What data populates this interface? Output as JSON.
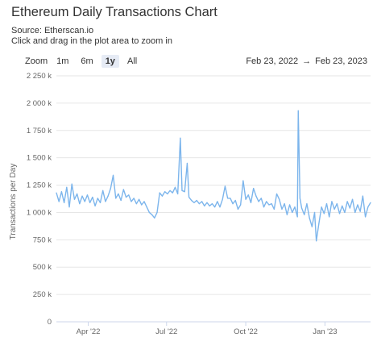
{
  "header": {
    "title": "Ethereum Daily Transactions Chart",
    "source": "Source: Etherscan.io",
    "hint": "Click and drag in the plot area to zoom in"
  },
  "zoom": {
    "label": "Zoom",
    "buttons": [
      "1m",
      "6m",
      "1y",
      "All"
    ],
    "active": "1y"
  },
  "range": {
    "from": "Feb 23, 2022",
    "arrow": "→",
    "to": "Feb 23, 2023"
  },
  "colors": {
    "line": "#7cb5ec",
    "grid": "#e6e6e6",
    "zoom_active_bg": "#e6ebf5"
  },
  "chart_data": {
    "type": "line",
    "title": "Ethereum Daily Transactions Chart",
    "xlabel": "",
    "ylabel": "Transactions per Day",
    "ylim": [
      0,
      2250000
    ],
    "y_ticks": [
      {
        "value": 0,
        "label": "0"
      },
      {
        "value": 250000,
        "label": "250 k"
      },
      {
        "value": 500000,
        "label": "500 k"
      },
      {
        "value": 750000,
        "label": "750 k"
      },
      {
        "value": 1000000,
        "label": "1 000 k"
      },
      {
        "value": 1250000,
        "label": "1 250 k"
      },
      {
        "value": 1500000,
        "label": "1 500 k"
      },
      {
        "value": 1750000,
        "label": "1 750 k"
      },
      {
        "value": 2000000,
        "label": "2 000 k"
      },
      {
        "value": 2250000,
        "label": "2 250 k"
      }
    ],
    "x_range": [
      "2022-02-23",
      "2023-02-23"
    ],
    "x_ticks": [
      {
        "date": "2022-04-01",
        "label": "Apr '22"
      },
      {
        "date": "2022-07-01",
        "label": "Jul '22"
      },
      {
        "date": "2022-10-01",
        "label": "Oct '22"
      },
      {
        "date": "2023-01-01",
        "label": "Jan '23"
      }
    ],
    "grid": true,
    "series": [
      {
        "points": [
          [
            "2022-02-23",
            1180000
          ],
          [
            "2022-02-26",
            1100000
          ],
          [
            "2022-03-01",
            1190000
          ],
          [
            "2022-03-04",
            1090000
          ],
          [
            "2022-03-07",
            1230000
          ],
          [
            "2022-03-10",
            1050000
          ],
          [
            "2022-03-13",
            1260000
          ],
          [
            "2022-03-16",
            1120000
          ],
          [
            "2022-03-19",
            1170000
          ],
          [
            "2022-03-22",
            1080000
          ],
          [
            "2022-03-25",
            1150000
          ],
          [
            "2022-03-28",
            1100000
          ],
          [
            "2022-03-31",
            1160000
          ],
          [
            "2022-04-03",
            1090000
          ],
          [
            "2022-04-06",
            1140000
          ],
          [
            "2022-04-09",
            1060000
          ],
          [
            "2022-04-12",
            1130000
          ],
          [
            "2022-04-15",
            1090000
          ],
          [
            "2022-04-18",
            1200000
          ],
          [
            "2022-04-21",
            1100000
          ],
          [
            "2022-04-24",
            1150000
          ],
          [
            "2022-04-27",
            1220000
          ],
          [
            "2022-04-30",
            1340000
          ],
          [
            "2022-05-03",
            1130000
          ],
          [
            "2022-05-06",
            1170000
          ],
          [
            "2022-05-09",
            1110000
          ],
          [
            "2022-05-12",
            1210000
          ],
          [
            "2022-05-15",
            1140000
          ],
          [
            "2022-05-18",
            1160000
          ],
          [
            "2022-05-21",
            1100000
          ],
          [
            "2022-05-24",
            1130000
          ],
          [
            "2022-05-27",
            1080000
          ],
          [
            "2022-05-30",
            1120000
          ],
          [
            "2022-06-02",
            1070000
          ],
          [
            "2022-06-05",
            1100000
          ],
          [
            "2022-06-08",
            1050000
          ],
          [
            "2022-06-11",
            1000000
          ],
          [
            "2022-06-14",
            980000
          ],
          [
            "2022-06-17",
            950000
          ],
          [
            "2022-06-20",
            1000000
          ],
          [
            "2022-06-23",
            1180000
          ],
          [
            "2022-06-26",
            1150000
          ],
          [
            "2022-06-29",
            1190000
          ],
          [
            "2022-07-02",
            1170000
          ],
          [
            "2022-07-05",
            1200000
          ],
          [
            "2022-07-08",
            1180000
          ],
          [
            "2022-07-11",
            1230000
          ],
          [
            "2022-07-14",
            1170000
          ],
          [
            "2022-07-17",
            1680000
          ],
          [
            "2022-07-19",
            1200000
          ],
          [
            "2022-07-22",
            1190000
          ],
          [
            "2022-07-25",
            1450000
          ],
          [
            "2022-07-27",
            1140000
          ],
          [
            "2022-07-30",
            1110000
          ],
          [
            "2022-08-02",
            1090000
          ],
          [
            "2022-08-05",
            1110000
          ],
          [
            "2022-08-08",
            1080000
          ],
          [
            "2022-08-11",
            1100000
          ],
          [
            "2022-08-14",
            1060000
          ],
          [
            "2022-08-17",
            1090000
          ],
          [
            "2022-08-20",
            1060000
          ],
          [
            "2022-08-23",
            1080000
          ],
          [
            "2022-08-26",
            1050000
          ],
          [
            "2022-08-29",
            1100000
          ],
          [
            "2022-09-01",
            1050000
          ],
          [
            "2022-09-04",
            1120000
          ],
          [
            "2022-09-07",
            1240000
          ],
          [
            "2022-09-10",
            1130000
          ],
          [
            "2022-09-13",
            1130000
          ],
          [
            "2022-09-16",
            1080000
          ],
          [
            "2022-09-19",
            1110000
          ],
          [
            "2022-09-22",
            1030000
          ],
          [
            "2022-09-25",
            1070000
          ],
          [
            "2022-09-28",
            1290000
          ],
          [
            "2022-10-01",
            1120000
          ],
          [
            "2022-10-04",
            1160000
          ],
          [
            "2022-10-07",
            1090000
          ],
          [
            "2022-10-10",
            1220000
          ],
          [
            "2022-10-13",
            1150000
          ],
          [
            "2022-10-16",
            1100000
          ],
          [
            "2022-10-19",
            1130000
          ],
          [
            "2022-10-22",
            1050000
          ],
          [
            "2022-10-25",
            1100000
          ],
          [
            "2022-10-28",
            1070000
          ],
          [
            "2022-10-31",
            1080000
          ],
          [
            "2022-11-03",
            1030000
          ],
          [
            "2022-11-06",
            1170000
          ],
          [
            "2022-11-09",
            1120000
          ],
          [
            "2022-11-12",
            1030000
          ],
          [
            "2022-11-15",
            1080000
          ],
          [
            "2022-11-18",
            980000
          ],
          [
            "2022-11-21",
            1070000
          ],
          [
            "2022-11-24",
            1000000
          ],
          [
            "2022-11-27",
            1050000
          ],
          [
            "2022-11-30",
            960000
          ],
          [
            "2022-12-01",
            1930000
          ],
          [
            "2022-12-03",
            1130000
          ],
          [
            "2022-12-05",
            1040000
          ],
          [
            "2022-12-08",
            980000
          ],
          [
            "2022-12-11",
            1080000
          ],
          [
            "2022-12-14",
            950000
          ],
          [
            "2022-12-17",
            870000
          ],
          [
            "2022-12-20",
            1000000
          ],
          [
            "2022-12-22",
            740000
          ],
          [
            "2022-12-25",
            900000
          ],
          [
            "2022-12-28",
            1050000
          ],
          [
            "2022-12-31",
            990000
          ],
          [
            "2023-01-03",
            1080000
          ],
          [
            "2023-01-06",
            960000
          ],
          [
            "2023-01-09",
            1100000
          ],
          [
            "2023-01-12",
            1030000
          ],
          [
            "2023-01-15",
            1080000
          ],
          [
            "2023-01-18",
            990000
          ],
          [
            "2023-01-21",
            1060000
          ],
          [
            "2023-01-24",
            1000000
          ],
          [
            "2023-01-27",
            1100000
          ],
          [
            "2023-01-30",
            1040000
          ],
          [
            "2023-02-02",
            1120000
          ],
          [
            "2023-02-05",
            1000000
          ],
          [
            "2023-02-08",
            1070000
          ],
          [
            "2023-02-11",
            1010000
          ],
          [
            "2023-02-14",
            1150000
          ],
          [
            "2023-02-17",
            960000
          ],
          [
            "2023-02-20",
            1050000
          ],
          [
            "2023-02-23",
            1090000
          ]
        ]
      }
    ]
  }
}
